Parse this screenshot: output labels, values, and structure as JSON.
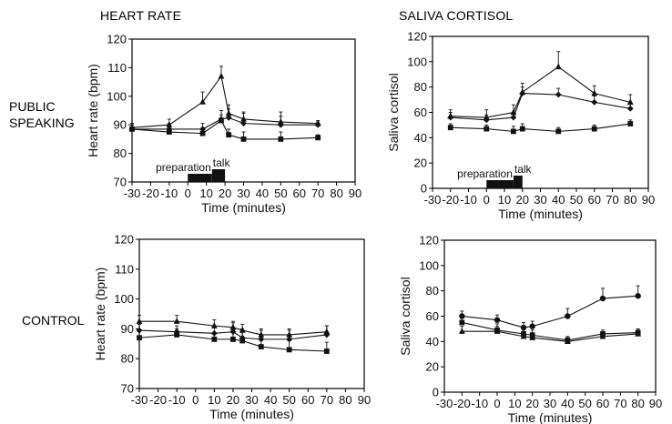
{
  "titles": {
    "heart_rate": "HEART RATE",
    "cortisol": "SALIVA CORTISOL"
  },
  "rows": {
    "public_speaking": [
      "PUBLIC",
      "SPEAKING"
    ],
    "control": "CONTROL"
  },
  "colors": {
    "ink": "#111111",
    "frame": "#000000"
  },
  "chart_data": [
    {
      "id": "hr_public",
      "type": "line",
      "xlabel": "Time (minutes)",
      "ylabel": "Heart rate (bpm)",
      "xlim": [
        -30,
        90
      ],
      "ylim": [
        70,
        120
      ],
      "xticks": [
        -30,
        -20,
        -10,
        0,
        10,
        20,
        30,
        40,
        50,
        60,
        70,
        80,
        90
      ],
      "yticks": [
        70,
        80,
        90,
        100,
        110,
        120
      ],
      "phases": [
        {
          "label": "preparation",
          "start": 0,
          "end": 13,
          "level": 1
        },
        {
          "label": "talk",
          "start": 13,
          "end": 20,
          "level": 2
        }
      ],
      "series": [
        {
          "marker": "triangle",
          "x": [
            -30,
            -10,
            8,
            18,
            22,
            30,
            50,
            70
          ],
          "y": [
            89,
            90,
            98,
            107,
            94,
            92,
            91,
            90.5
          ],
          "err": [
            1.5,
            2,
            3.5,
            3.5,
            3,
            2.5,
            3.5,
            1
          ]
        },
        {
          "marker": "diamond",
          "x": [
            -30,
            -10,
            8,
            18,
            22,
            30,
            50,
            70
          ],
          "y": [
            88.5,
            88.5,
            88.5,
            92,
            92.5,
            90.5,
            90,
            90
          ],
          "err": [
            1.5,
            2,
            2,
            3,
            3,
            3.5,
            3,
            1
          ]
        },
        {
          "marker": "square",
          "x": [
            -30,
            -10,
            8,
            18,
            22,
            30,
            50,
            70
          ],
          "y": [
            88.5,
            87.5,
            87,
            91.5,
            86.5,
            85,
            85,
            85.5
          ],
          "err": [
            1.5,
            2,
            2,
            2,
            2,
            2.5,
            2.5,
            1
          ]
        }
      ]
    },
    {
      "id": "cort_public",
      "type": "line",
      "xlabel": "Time (minutes)",
      "ylabel": "Saliva cortisol",
      "xlim": [
        -30,
        90
      ],
      "ylim": [
        0,
        120
      ],
      "xticks": [
        -30,
        -20,
        -10,
        0,
        10,
        20,
        30,
        40,
        50,
        60,
        70,
        80,
        90
      ],
      "yticks": [
        0,
        20,
        40,
        60,
        80,
        100,
        120
      ],
      "phases": [
        {
          "label": "preparation",
          "start": 0,
          "end": 15,
          "level": 1
        },
        {
          "label": "talk",
          "start": 15,
          "end": 20,
          "level": 2
        }
      ],
      "series": [
        {
          "marker": "triangle",
          "x": [
            -20,
            0,
            15,
            20,
            40,
            60,
            80
          ],
          "y": [
            57,
            56,
            60,
            76,
            96,
            75,
            68
          ],
          "err": [
            5,
            6,
            6,
            7,
            12,
            6,
            6
          ]
        },
        {
          "marker": "diamond",
          "x": [
            -20,
            0,
            15,
            20,
            40,
            60,
            80
          ],
          "y": [
            56,
            54,
            56,
            75,
            74,
            68,
            63
          ],
          "err": [
            4,
            4,
            4,
            5,
            5,
            5,
            5
          ]
        },
        {
          "marker": "square",
          "x": [
            -20,
            0,
            15,
            20,
            40,
            60,
            80
          ],
          "y": [
            48,
            47,
            45,
            47,
            45,
            47,
            51
          ],
          "err": [
            3,
            3,
            4,
            4,
            3,
            3,
            3
          ]
        }
      ]
    },
    {
      "id": "hr_control",
      "type": "line",
      "xlabel": "Time (minutes)",
      "ylabel": "Heart rate (bpm)",
      "xlim": [
        -30,
        90
      ],
      "ylim": [
        70,
        120
      ],
      "xticks": [
        -30,
        -20,
        -10,
        0,
        10,
        20,
        30,
        40,
        50,
        60,
        70,
        80,
        90
      ],
      "yticks": [
        70,
        80,
        90,
        100,
        110,
        120
      ],
      "phases": [],
      "series": [
        {
          "marker": "triangle",
          "x": [
            -30,
            -10,
            10,
            20,
            25,
            35,
            50,
            70
          ],
          "y": [
            92.5,
            92.5,
            91,
            90.5,
            89.5,
            88,
            88,
            89
          ],
          "err": [
            2,
            2,
            2,
            2,
            2,
            2,
            2,
            2
          ]
        },
        {
          "marker": "diamond",
          "x": [
            -30,
            -10,
            10,
            20,
            25,
            35,
            50,
            70
          ],
          "y": [
            89.5,
            89,
            88.5,
            89,
            87,
            86.5,
            86.5,
            88
          ],
          "err": [
            2,
            2,
            2,
            3,
            3,
            3,
            3,
            3
          ]
        },
        {
          "marker": "square",
          "x": [
            -30,
            -10,
            10,
            20,
            25,
            35,
            50,
            70
          ],
          "y": [
            87,
            88,
            86.5,
            86.5,
            86,
            84,
            83,
            82.5
          ],
          "err": [
            2,
            2,
            2,
            3,
            3,
            3,
            3,
            3
          ]
        }
      ]
    },
    {
      "id": "cort_control",
      "type": "line",
      "xlabel": "Time (minutes)",
      "ylabel": "Saliva cortisol",
      "xlim": [
        -30,
        90
      ],
      "ylim": [
        0,
        120
      ],
      "xticks": [
        -30,
        -20,
        -10,
        0,
        10,
        20,
        30,
        40,
        50,
        60,
        70,
        80,
        90
      ],
      "yticks": [
        0,
        20,
        40,
        60,
        80,
        100,
        120
      ],
      "phases": [],
      "series": [
        {
          "marker": "circle",
          "x": [
            -20,
            0,
            15,
            20,
            40,
            60,
            80
          ],
          "y": [
            60,
            57,
            51,
            52,
            60,
            74,
            76
          ],
          "err": [
            4,
            4,
            4,
            4,
            6,
            8,
            8
          ]
        },
        {
          "marker": "square",
          "x": [
            -20,
            0,
            15,
            20,
            40,
            60,
            80
          ],
          "y": [
            55,
            49,
            46,
            45,
            41,
            46,
            47
          ],
          "err": [
            5,
            5,
            4,
            4,
            3,
            3,
            3
          ]
        },
        {
          "marker": "triangle",
          "x": [
            -20,
            0,
            15,
            20,
            40,
            60,
            80
          ],
          "y": [
            48,
            48,
            44,
            43,
            40,
            44,
            46
          ],
          "err": [
            4,
            4,
            4,
            4,
            3,
            3,
            3
          ]
        }
      ]
    }
  ]
}
